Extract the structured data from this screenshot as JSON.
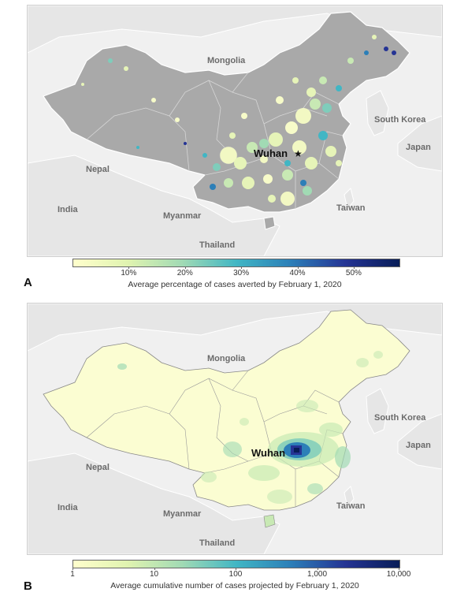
{
  "labels": {
    "mongolia": "Mongolia",
    "south_korea": "South Korea",
    "japan": "Japan",
    "nepal": "Nepal",
    "india": "India",
    "myanmar": "Myanmar",
    "thailand": "Thailand",
    "taiwan": "Taiwan",
    "wuhan": "Wuhan"
  },
  "panel_a": {
    "letter": "A",
    "legend_title": "Average percentage of cases averted by February 1, 2020",
    "ticks": [
      "10%",
      "20%",
      "30%",
      "40%",
      "50%"
    ],
    "tick_values": [
      10,
      20,
      30,
      40,
      50
    ],
    "scale_range": [
      0,
      58
    ]
  },
  "panel_b": {
    "letter": "B",
    "legend_title": "Average cumulative number of cases projected by February 1, 2020",
    "ticks": [
      "1",
      "10",
      "100",
      "1,000",
      "10,000"
    ],
    "tick_values": [
      1,
      10,
      100,
      1000,
      10000
    ],
    "scale": "log"
  },
  "colors": {
    "land_china_a": "#a9a9a9",
    "land_china_b": "#fbfdd2",
    "neighbors": "#e6e6e6",
    "water": "#f0f0f0",
    "ramp": [
      "#ffffcc",
      "#e0f3b0",
      "#a1dab4",
      "#41b6c4",
      "#2c7fb8",
      "#253494",
      "#081d58"
    ]
  }
}
